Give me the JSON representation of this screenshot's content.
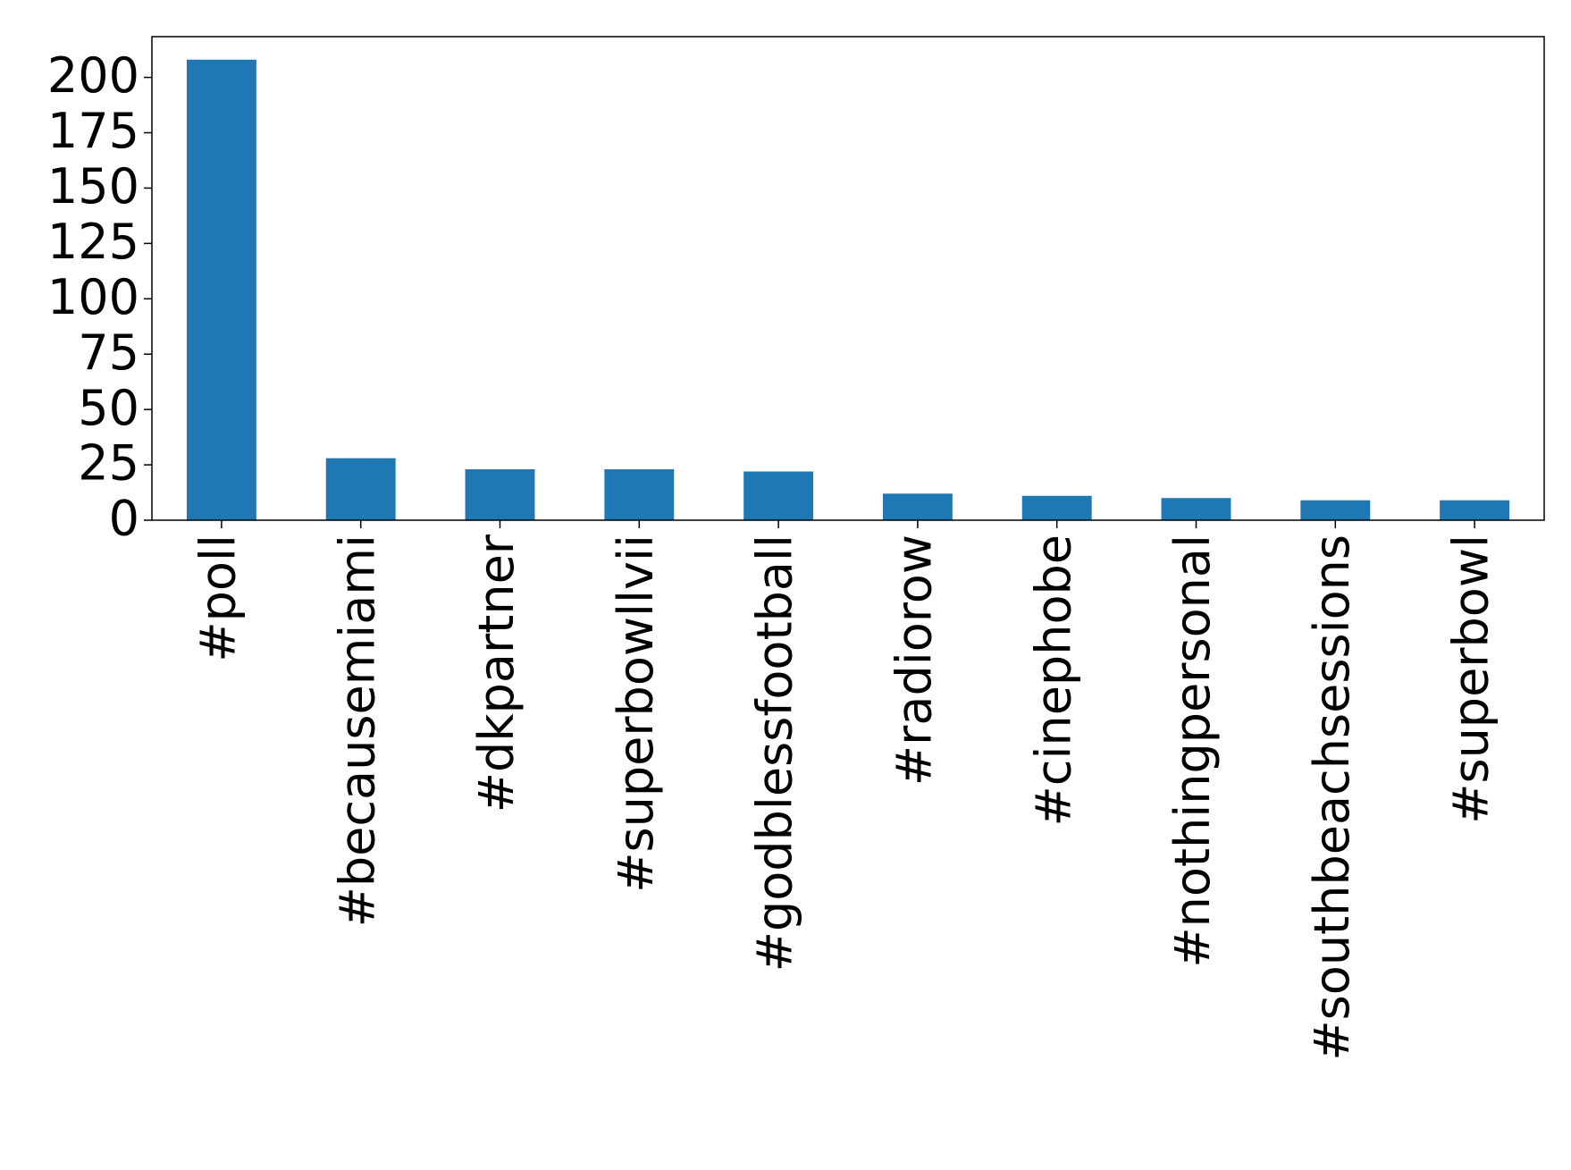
{
  "chart_data": {
    "type": "bar",
    "categories": [
      "#poll",
      "#becausemiami",
      "#dkpartner",
      "#superbowllvii",
      "#godblessfootball",
      "#radiorow",
      "#cinephobe",
      "#nothingpersonal",
      "#southbeachsessions",
      "#superbowl"
    ],
    "values": [
      208,
      28,
      23,
      23,
      22,
      12,
      11,
      10,
      9,
      9
    ],
    "color": "#1f77b4",
    "ylim": [
      0,
      218.4
    ],
    "yticks": [
      0,
      25,
      50,
      75,
      100,
      125,
      150,
      175,
      200
    ],
    "grid": false
  }
}
